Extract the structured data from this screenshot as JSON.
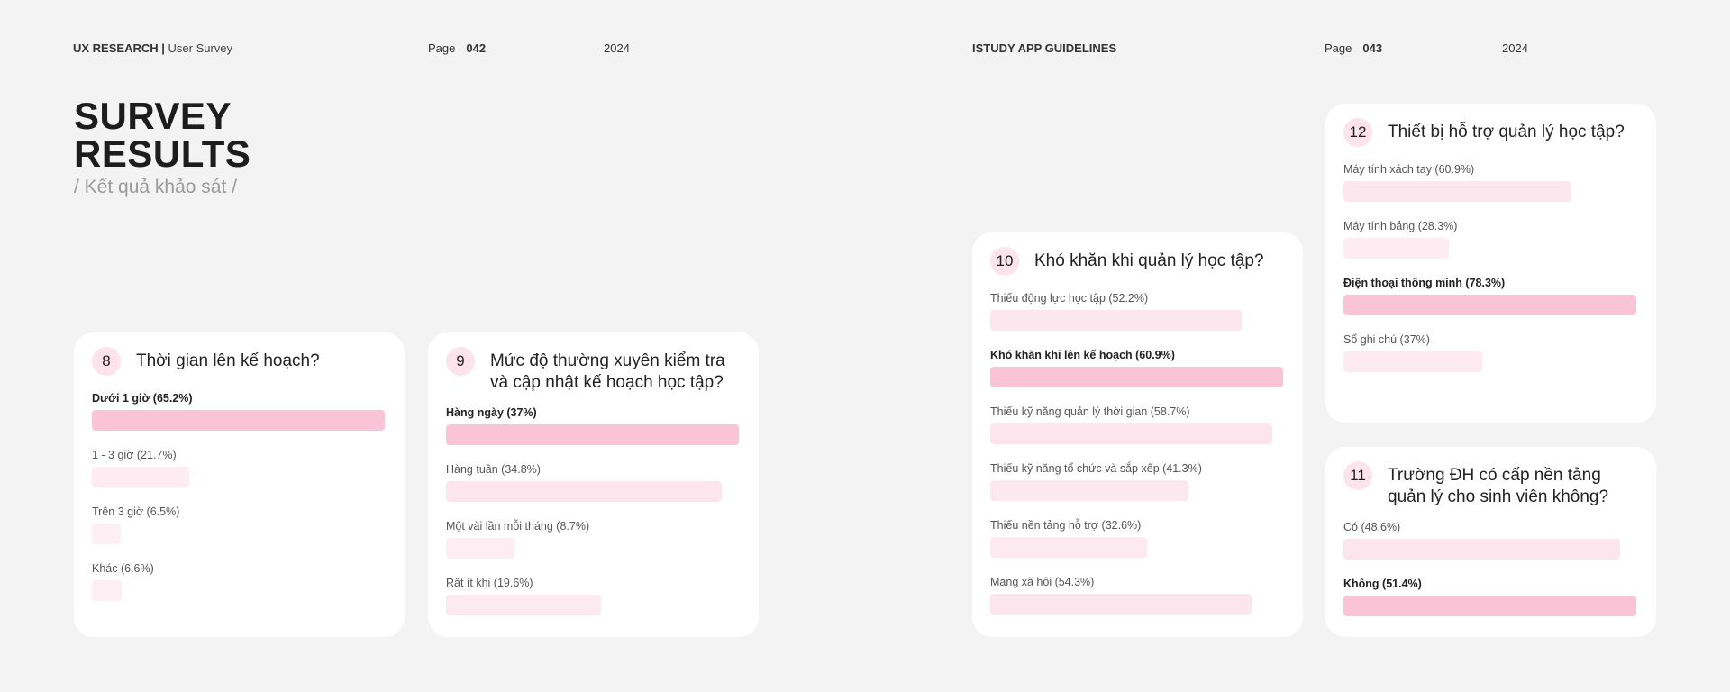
{
  "left_header": {
    "section": "UX RESEARCH",
    "separator": "|",
    "subsection": "User Survey",
    "page_label": "Page",
    "page_number": "042",
    "year": "2024"
  },
  "right_header": {
    "section": "ISTUDY APP GUIDELINES",
    "page_label": "Page",
    "page_number": "043",
    "year": "2024"
  },
  "title": {
    "line1": "SURVEY",
    "line2": "RESULTS",
    "subtitle": "/ Kết quả khảo sát /"
  },
  "colors": {
    "bar_primary": "#fbc3d6",
    "bar_light": "#fde4ed"
  },
  "cards": {
    "q8": {
      "number": "8",
      "title": "Thời gian lên kế hoạch?",
      "options": [
        {
          "label": "Dưới 1 giờ (65.2%)",
          "percent": 65.2,
          "highlight": true
        },
        {
          "label": "1 - 3 giờ (21.7%)",
          "percent": 21.7,
          "highlight": false
        },
        {
          "label": "Trên 3 giờ (6.5%)",
          "percent": 6.5,
          "highlight": false
        },
        {
          "label": "Khác (6.6%)",
          "percent": 6.6,
          "highlight": false
        }
      ]
    },
    "q9": {
      "number": "9",
      "title": "Mức độ thường xuyên kiểm tra và cập nhật kế hoạch học tập?",
      "options": [
        {
          "label": "Hàng ngày (37%)",
          "percent": 37,
          "highlight": true
        },
        {
          "label": "Hàng tuần (34.8%)",
          "percent": 34.8,
          "highlight": false
        },
        {
          "label": "Một vài lần mỗi tháng (8.7%)",
          "percent": 8.7,
          "highlight": false
        },
        {
          "label": "Rất ít khi (19.6%)",
          "percent": 19.6,
          "highlight": false
        }
      ]
    },
    "q10": {
      "number": "10",
      "title": "Khó khăn khi quản lý học tập?",
      "options": [
        {
          "label": "Thiếu động lực học tập (52.2%)",
          "percent": 52.2,
          "highlight": false
        },
        {
          "label": "Khó khăn khi lên kế hoạch (60.9%)",
          "percent": 60.9,
          "highlight": true
        },
        {
          "label": "Thiếu kỹ năng quản lý thời gian (58.7%)",
          "percent": 58.7,
          "highlight": false
        },
        {
          "label": "Thiếu kỹ năng tổ chức và sắp xếp (41.3%)",
          "percent": 41.3,
          "highlight": false
        },
        {
          "label": "Thiếu nền tảng hỗ trợ (32.6%)",
          "percent": 32.6,
          "highlight": false
        },
        {
          "label": "Mạng xã hội (54.3%)",
          "percent": 54.3,
          "highlight": false
        }
      ]
    },
    "q12": {
      "number": "12",
      "title": "Thiết bị hỗ trợ quản lý học tập?",
      "options": [
        {
          "label": "Máy tính xách tay (60.9%)",
          "percent": 60.9,
          "highlight": false
        },
        {
          "label": "Máy tính bảng (28.3%)",
          "percent": 28.3,
          "highlight": false
        },
        {
          "label": "Điện thoại thông minh (78.3%)",
          "percent": 78.3,
          "highlight": true
        },
        {
          "label": "Sổ ghi chú (37%)",
          "percent": 37,
          "highlight": false
        }
      ]
    },
    "q11": {
      "number": "11",
      "title": "Trường ĐH có cấp nền tảng quản lý cho sinh viên không?",
      "options": [
        {
          "label": "Có (48.6%)",
          "percent": 48.6,
          "highlight": false
        },
        {
          "label": "Không (51.4%)",
          "percent": 51.4,
          "highlight": true
        }
      ]
    }
  }
}
